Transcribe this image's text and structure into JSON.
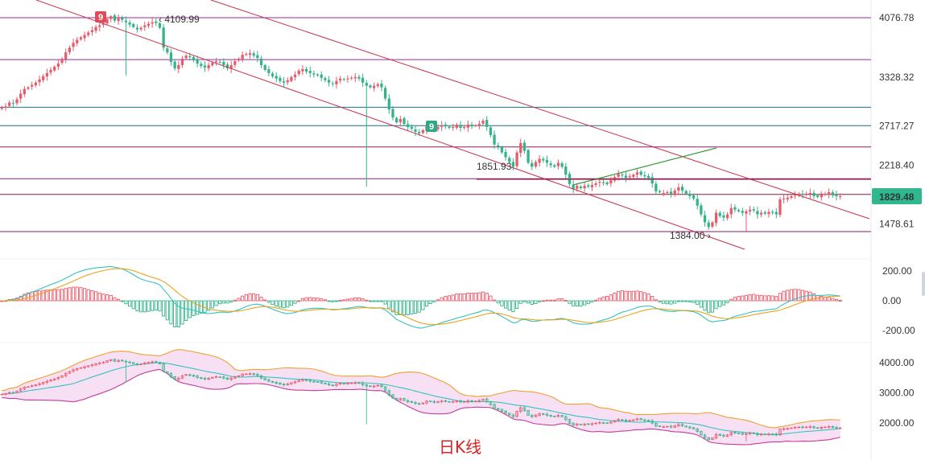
{
  "chart_data": [
    {
      "type": "candlestick",
      "panel": "main",
      "title": "",
      "ylim": [
        1100,
        4300
      ],
      "y_ticks": [
        {
          "label": "4076.78",
          "value": 4076.78
        },
        {
          "label": "3328.32",
          "value": 3328.32
        },
        {
          "label": "2717.27",
          "value": 2717.27
        },
        {
          "label": "2218.40",
          "value": 2218.4
        },
        {
          "label": "1478.61",
          "value": 1478.61
        }
      ],
      "current_price": {
        "label": "1829.48",
        "value": 1829.48
      },
      "annotations": [
        {
          "text": "4109.99",
          "kind": "high-marker"
        },
        {
          "text": "1851.93",
          "kind": "level-marker"
        },
        {
          "text": "1384.00",
          "kind": "low-marker"
        },
        {
          "text": "9",
          "kind": "td-sequential-badge-red"
        },
        {
          "text": "9",
          "kind": "td-sequential-badge-green"
        }
      ],
      "horizontal_levels": [
        {
          "value": 4076.78,
          "color": "#9b2a9b"
        },
        {
          "value": 3550,
          "color": "#9b2a9b"
        },
        {
          "value": 2950,
          "color": "#1f6f8b"
        },
        {
          "value": 2717.27,
          "color": "#1f6f8b"
        },
        {
          "value": 2450,
          "color": "#8b1a6b"
        },
        {
          "value": 2050,
          "color": "#8b1a6b"
        },
        {
          "value": 1851.93,
          "color": "#8b1a3b"
        },
        {
          "value": 1384,
          "color": "#8b1a6b"
        }
      ],
      "closes": [
        2950,
        2960,
        3010,
        3000,
        3050,
        3120,
        3180,
        3200,
        3230,
        3260,
        3300,
        3340,
        3380,
        3420,
        3460,
        3500,
        3560,
        3640,
        3700,
        3760,
        3800,
        3830,
        3860,
        3890,
        3920,
        3960,
        3980,
        4010,
        4060,
        4095,
        4040,
        4070,
        4050,
        4020,
        3990,
        3960,
        3930,
        3950,
        3980,
        4000,
        4020,
        4010,
        3950,
        3700,
        3640,
        3520,
        3440,
        3480,
        3560,
        3600,
        3580,
        3540,
        3500,
        3470,
        3450,
        3480,
        3510,
        3530,
        3520,
        3480,
        3440,
        3480,
        3530,
        3560,
        3610,
        3620,
        3630,
        3600,
        3570,
        3480,
        3420,
        3380,
        3340,
        3310,
        3280,
        3260,
        3290,
        3330,
        3360,
        3410,
        3430,
        3400,
        3380,
        3360,
        3350,
        3320,
        3290,
        3260,
        3240,
        3280,
        3310,
        3300,
        3310,
        3320,
        3330,
        3310,
        3260,
        3220,
        3200,
        3220,
        3240,
        3200,
        3060,
        2920,
        2820,
        2760,
        2800,
        2740,
        2700,
        2680,
        2640,
        2620,
        2660,
        2720,
        2700,
        2680,
        2700,
        2720,
        2710,
        2690,
        2700,
        2730,
        2690,
        2700,
        2730,
        2710,
        2720,
        2740,
        2780,
        2700,
        2600,
        2480,
        2450,
        2380,
        2320,
        2260,
        2200,
        2380,
        2500,
        2400,
        2250,
        2200,
        2260,
        2300,
        2280,
        2250,
        2220,
        2200,
        2250,
        2200,
        2100,
        1980,
        1920,
        1960,
        1930,
        1960,
        1950,
        1970,
        1990,
        2010,
        2000,
        1980,
        2030,
        2070,
        2110,
        2090,
        2060,
        2080,
        2100,
        2130,
        2100,
        2080,
        2060,
        1990,
        1890,
        1880,
        1870,
        1880,
        1860,
        1900,
        1940,
        1900,
        1860,
        1830,
        1800,
        1710,
        1600,
        1500,
        1440,
        1500,
        1620,
        1580,
        1560,
        1600,
        1680,
        1660,
        1640,
        1620,
        1640,
        1660,
        1650,
        1600,
        1620,
        1610,
        1630,
        1620,
        1600,
        1790,
        1800,
        1810,
        1830,
        1850,
        1860,
        1850,
        1860,
        1870,
        1830,
        1820,
        1850,
        1860,
        1880,
        1840,
        1830,
        1829.48
      ]
    },
    {
      "type": "macd",
      "panel": "indicator-1",
      "ylim": [
        -250,
        250
      ],
      "y_ticks": [
        {
          "label": "200.00",
          "value": 200
        },
        {
          "label": "0.00",
          "value": 0
        },
        {
          "label": "-200.00",
          "value": -200
        }
      ],
      "series": [
        {
          "color": "#35c2c0",
          "role": "DIF"
        },
        {
          "color": "#e8a41e",
          "role": "DEA"
        }
      ],
      "histogram_colors": {
        "positive": "#e85b6a",
        "negative": "#33b38a"
      }
    },
    {
      "type": "bollinger",
      "panel": "indicator-2",
      "ylim": [
        1300,
        4500
      ],
      "y_ticks": [
        {
          "label": "4000.00",
          "value": 4000
        },
        {
          "label": "3000.00",
          "value": 3000
        },
        {
          "label": "2000.00",
          "value": 2000
        }
      ],
      "series": [
        {
          "color": "#f0a030",
          "role": "upper"
        },
        {
          "color": "#35c2c0",
          "role": "middle"
        },
        {
          "color": "#c23c9a",
          "role": "lower"
        }
      ]
    }
  ],
  "caption": "日K线",
  "colors": {
    "up": "#e85b6a",
    "down": "#33b38a",
    "channel": "#c8314a",
    "trendline_green": "#3a9c3a",
    "current_price_bg": "#2fb88f"
  }
}
